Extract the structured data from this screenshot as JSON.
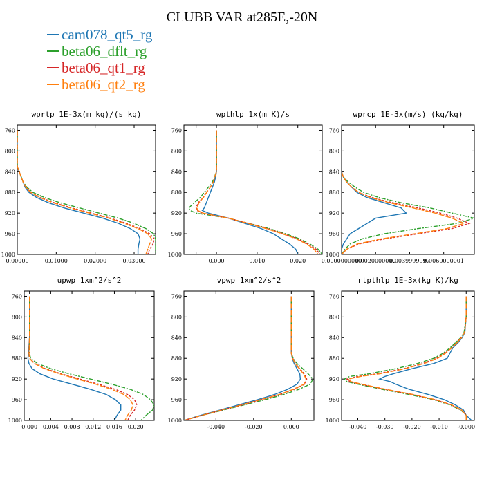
{
  "title": "CLUBB VAR at285E,-20N",
  "legend": [
    {
      "name": "cam078_qt5_rg",
      "color": "#1f77b4",
      "dash": "none"
    },
    {
      "name": "beta06_dflt_rg",
      "color": "#2ca02c",
      "dash": "6,2,2,2"
    },
    {
      "name": "beta06_qt1_rg",
      "color": "#d62728",
      "dash": "3,2"
    },
    {
      "name": "beta06_qt2_rg",
      "color": "#ff7f0e",
      "dash": "8,2"
    }
  ],
  "chart_data": [
    {
      "type": "line",
      "title": "wprtp  1E-3x(m kg)/(s kg)",
      "xlim": [
        0,
        0.0355
      ],
      "xticks": [
        0,
        0.01,
        0.02,
        0.03
      ],
      "xticklabels": [
        "0.00000",
        "0.01000",
        "0.02000",
        "0.03000"
      ],
      "ylim": [
        1000,
        750
      ],
      "yticks": [
        760,
        800,
        840,
        880,
        920,
        960,
        1000
      ],
      "y": [
        760,
        800,
        830,
        840,
        850,
        860,
        870,
        880,
        890,
        900,
        910,
        920,
        930,
        940,
        950,
        960,
        970,
        980,
        990,
        1000
      ],
      "series": [
        {
          "name": "cam078_qt5_rg",
          "values": [
            0,
            0,
            0,
            0.0005,
            0.001,
            0.0015,
            0.002,
            0.003,
            0.005,
            0.008,
            0.012,
            0.017,
            0.022,
            0.026,
            0.029,
            0.031,
            0.0315,
            0.0312,
            0.031,
            0.031
          ]
        },
        {
          "name": "beta06_dflt_rg",
          "values": [
            0,
            0,
            0,
            0.0005,
            0.001,
            0.0015,
            0.0025,
            0.004,
            0.007,
            0.011,
            0.016,
            0.021,
            0.026,
            0.03,
            0.033,
            0.035,
            0.0355,
            0.0355,
            0.0355,
            0.0355
          ]
        },
        {
          "name": "beta06_qt1_rg",
          "values": [
            0,
            0,
            0,
            0.0005,
            0.001,
            0.0015,
            0.0022,
            0.0035,
            0.006,
            0.0095,
            0.014,
            0.019,
            0.024,
            0.028,
            0.0315,
            0.034,
            0.0352,
            0.0348,
            0.034,
            0.0335
          ]
        },
        {
          "name": "beta06_qt2_rg",
          "values": [
            0,
            0,
            0,
            0.0005,
            0.001,
            0.0015,
            0.0022,
            0.0034,
            0.0058,
            0.0092,
            0.0135,
            0.0185,
            0.0235,
            0.0275,
            0.031,
            0.0335,
            0.0345,
            0.034,
            0.0335,
            0.033
          ]
        }
      ]
    },
    {
      "type": "line",
      "title": "wpthlp  1x(m K)/s",
      "xlim": [
        -0.008,
        0.026
      ],
      "xticks": [
        -0.005,
        0,
        0.01,
        0.02
      ],
      "xticklabels": [
        "",
        "0.000",
        "0.010",
        "0.020"
      ],
      "ylim": [
        1000,
        750
      ],
      "yticks": [
        760,
        800,
        840,
        880,
        920,
        960,
        1000
      ],
      "y": [
        760,
        800,
        840,
        850,
        860,
        870,
        880,
        890,
        900,
        910,
        915,
        920,
        925,
        930,
        940,
        950,
        960,
        970,
        980,
        990,
        1000
      ],
      "series": [
        {
          "name": "cam078_qt5_rg",
          "values": [
            0,
            0,
            0,
            -0.0002,
            -0.0005,
            -0.001,
            -0.0015,
            -0.002,
            -0.0025,
            -0.003,
            -0.0035,
            -0.002,
            0.0005,
            0.003,
            0.007,
            0.011,
            0.014,
            0.016,
            0.018,
            0.0195,
            0.02
          ]
        },
        {
          "name": "beta06_dflt_rg",
          "values": [
            0,
            0,
            0,
            -0.0005,
            -0.001,
            -0.002,
            -0.003,
            -0.004,
            -0.0055,
            -0.0068,
            -0.0065,
            -0.005,
            -0.001,
            0.003,
            0.008,
            0.013,
            0.017,
            0.0205,
            0.023,
            0.025,
            0.026
          ]
        },
        {
          "name": "beta06_qt1_rg",
          "values": [
            0,
            0,
            0,
            -0.0004,
            -0.0008,
            -0.0015,
            -0.0025,
            -0.0033,
            -0.0045,
            -0.005,
            -0.0048,
            -0.0035,
            -0.0005,
            0.003,
            0.008,
            0.0125,
            0.0165,
            0.02,
            0.0225,
            0.0245,
            0.0255
          ]
        },
        {
          "name": "beta06_qt2_rg",
          "values": [
            0,
            0,
            0,
            -0.0004,
            -0.0008,
            -0.0015,
            -0.0024,
            -0.0032,
            -0.0043,
            -0.0048,
            -0.0046,
            -0.0033,
            -0.0003,
            0.003,
            0.0078,
            0.0122,
            0.0162,
            0.0197,
            0.0222,
            0.024,
            0.025
          ]
        }
      ]
    },
    {
      "type": "line",
      "title": "wprcp  1E-3x(m/s) (kg/kg)",
      "xlim": [
        0,
        0.0078
      ],
      "xticks": [
        0,
        0.002,
        0.004,
        0.006
      ],
      "xticklabels": [
        "0.0000000000",
        "0.0020000000",
        "0.0039999997",
        "0.0060000001"
      ],
      "ylim": [
        1000,
        750
      ],
      "yticks": [
        760,
        800,
        840,
        880,
        920,
        960,
        1000
      ],
      "y": [
        760,
        800,
        840,
        850,
        860,
        870,
        880,
        890,
        900,
        910,
        920,
        930,
        940,
        950,
        960,
        970,
        980,
        990,
        1000
      ],
      "series": [
        {
          "name": "cam078_qt5_rg",
          "values": [
            0,
            0,
            0,
            0.0001,
            0.0003,
            0.0006,
            0.0009,
            0.0015,
            0.0025,
            0.0035,
            0.0038,
            0.002,
            0.0015,
            0.001,
            0.0005,
            0.0003,
            0.0001,
            0,
            0
          ]
        },
        {
          "name": "beta06_dflt_rg",
          "values": [
            0,
            0,
            0,
            0.0001,
            0.0004,
            0.0008,
            0.0013,
            0.0022,
            0.0035,
            0.0052,
            0.0065,
            0.0078,
            0.0068,
            0.0045,
            0.0025,
            0.0012,
            0.0005,
            0.0002,
            0
          ]
        },
        {
          "name": "beta06_qt1_rg",
          "values": [
            0,
            0,
            0,
            0.0001,
            0.0003,
            0.0006,
            0.001,
            0.0018,
            0.003,
            0.0045,
            0.0058,
            0.0068,
            0.0075,
            0.0065,
            0.0045,
            0.0025,
            0.001,
            0.0003,
            0
          ]
        },
        {
          "name": "beta06_qt2_rg",
          "values": [
            0,
            0,
            0,
            0.0001,
            0.0003,
            0.0006,
            0.001,
            0.0017,
            0.0028,
            0.0042,
            0.0055,
            0.0065,
            0.0072,
            0.0062,
            0.0043,
            0.0023,
            0.0009,
            0.0003,
            0
          ]
        }
      ]
    },
    {
      "type": "line",
      "title": "upwp  1xm^2/s^2",
      "xlim": [
        -0.001,
        0.0235
      ],
      "xticks": [
        0,
        0.004,
        0.008,
        0.012,
        0.016,
        0.02
      ],
      "xticklabels": [
        "0.000",
        "0.004",
        "0.008",
        "0.012",
        "0.016",
        "0.020"
      ],
      "ylim": [
        1000,
        750
      ],
      "yticks": [
        760,
        800,
        840,
        880,
        920,
        960,
        1000
      ],
      "y": [
        760,
        800,
        840,
        870,
        880,
        890,
        900,
        910,
        920,
        930,
        940,
        950,
        960,
        970,
        980,
        990,
        1000
      ],
      "series": [
        {
          "name": "cam078_qt5_rg",
          "values": [
            0,
            0,
            0,
            -0.0002,
            -0.0003,
            -0.0001,
            0.0005,
            0.002,
            0.0045,
            0.008,
            0.0115,
            0.0145,
            0.0162,
            0.0172,
            0.0172,
            0.0165,
            0.016
          ]
        },
        {
          "name": "beta06_dflt_rg",
          "values": [
            0,
            0,
            0,
            0,
            0.0002,
            0.0015,
            0.004,
            0.0075,
            0.0115,
            0.0155,
            0.019,
            0.0215,
            0.0228,
            0.0235,
            0.0232,
            0.022,
            0.021
          ]
        },
        {
          "name": "beta06_qt1_rg",
          "values": [
            0,
            0,
            0,
            -0.0001,
            0,
            0.001,
            0.003,
            0.006,
            0.0095,
            0.013,
            0.0162,
            0.0185,
            0.0198,
            0.0202,
            0.0198,
            0.019,
            0.0185
          ]
        },
        {
          "name": "beta06_qt2_rg",
          "values": [
            0,
            0,
            0,
            -0.0001,
            0,
            0.0009,
            0.0028,
            0.0057,
            0.009,
            0.0125,
            0.0155,
            0.0178,
            0.019,
            0.0195,
            0.0192,
            0.0185,
            0.018
          ]
        }
      ]
    },
    {
      "type": "line",
      "title": "vpwp  1xm^2/s^2",
      "xlim": [
        -0.057,
        0.012
      ],
      "xticks": [
        -0.04,
        -0.02,
        0
      ],
      "xticklabels": [
        "-0.040",
        "-0.020",
        "0.000"
      ],
      "ylim": [
        1000,
        750
      ],
      "yticks": [
        760,
        800,
        840,
        880,
        920,
        960,
        1000
      ],
      "y": [
        760,
        800,
        840,
        870,
        880,
        890,
        900,
        910,
        920,
        930,
        940,
        950,
        960,
        970,
        980,
        990,
        1000
      ],
      "series": [
        {
          "name": "cam078_qt5_rg",
          "values": [
            0,
            0,
            0,
            0,
            0.0005,
            0.0015,
            0.003,
            0.0045,
            0.0048,
            0.003,
            -0.002,
            -0.009,
            -0.018,
            -0.028,
            -0.038,
            -0.048,
            -0.057
          ]
        },
        {
          "name": "beta06_dflt_rg",
          "values": [
            0,
            0,
            0,
            0,
            0.001,
            0.003,
            0.006,
            0.009,
            0.0115,
            0.01,
            0.004,
            -0.004,
            -0.014,
            -0.025,
            -0.036,
            -0.047,
            -0.057
          ]
        },
        {
          "name": "beta06_qt1_rg",
          "values": [
            0,
            0,
            0,
            0,
            0.0008,
            0.0022,
            0.0045,
            0.007,
            0.0082,
            0.0072,
            0.0015,
            -0.006,
            -0.016,
            -0.026,
            -0.037,
            -0.047,
            -0.057
          ]
        },
        {
          "name": "beta06_qt2_rg",
          "values": [
            0,
            0,
            0,
            0,
            0.0007,
            0.002,
            0.0042,
            0.0065,
            0.0078,
            0.0068,
            0.001,
            -0.0065,
            -0.0165,
            -0.0265,
            -0.0372,
            -0.0472,
            -0.057
          ]
        }
      ]
    },
    {
      "type": "line",
      "title": "rtpthlp  1E-3x(kg K)/kg",
      "xlim": [
        -0.046,
        0.003
      ],
      "xticks": [
        -0.04,
        -0.03,
        -0.02,
        -0.01,
        0
      ],
      "xticklabels": [
        "-0.040",
        "-0.030",
        "-0.020",
        "-0.010",
        "-0.000"
      ],
      "ylim": [
        1000,
        750
      ],
      "yticks": [
        760,
        800,
        840,
        880,
        920,
        960,
        1000
      ],
      "y": [
        760,
        800,
        830,
        840,
        850,
        860,
        870,
        880,
        890,
        900,
        910,
        915,
        920,
        925,
        930,
        940,
        950,
        960,
        970,
        980,
        990,
        1000
      ],
      "series": [
        {
          "name": "cam078_qt5_rg",
          "values": [
            0,
            0,
            -0.0005,
            -0.0015,
            -0.003,
            -0.005,
            -0.006,
            -0.007,
            -0.012,
            -0.02,
            -0.027,
            -0.03,
            -0.032,
            -0.028,
            -0.026,
            -0.021,
            -0.014,
            -0.008,
            -0.004,
            -0.001,
            0,
            0.002
          ]
        },
        {
          "name": "beta06_dflt_rg",
          "values": [
            0,
            0,
            -0.0008,
            -0.002,
            -0.004,
            -0.006,
            -0.0085,
            -0.012,
            -0.018,
            -0.026,
            -0.036,
            -0.043,
            -0.045,
            -0.044,
            -0.04,
            -0.031,
            -0.021,
            -0.012,
            -0.006,
            -0.002,
            0,
            0
          ]
        },
        {
          "name": "beta06_qt1_rg",
          "values": [
            0,
            0,
            -0.0006,
            -0.0018,
            -0.0035,
            -0.0055,
            -0.0078,
            -0.011,
            -0.016,
            -0.023,
            -0.033,
            -0.04,
            -0.044,
            -0.043,
            -0.039,
            -0.03,
            -0.02,
            -0.0115,
            -0.0055,
            -0.0018,
            0,
            0
          ]
        },
        {
          "name": "beta06_qt2_rg",
          "values": [
            0,
            0,
            -0.0006,
            -0.0017,
            -0.0034,
            -0.0054,
            -0.0076,
            -0.0105,
            -0.0155,
            -0.0225,
            -0.032,
            -0.039,
            -0.0435,
            -0.0425,
            -0.0385,
            -0.0295,
            -0.0195,
            -0.0112,
            -0.0053,
            -0.0017,
            0,
            0
          ]
        }
      ]
    }
  ]
}
